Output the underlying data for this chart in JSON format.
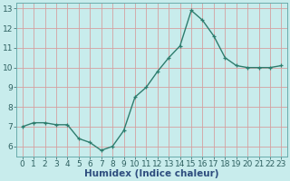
{
  "x": [
    0,
    1,
    2,
    3,
    4,
    5,
    6,
    7,
    8,
    9,
    10,
    11,
    12,
    13,
    14,
    15,
    16,
    17,
    18,
    19,
    20,
    21,
    22,
    23
  ],
  "y": [
    7.0,
    7.2,
    7.2,
    7.1,
    7.1,
    6.4,
    6.2,
    5.8,
    6.0,
    6.8,
    8.5,
    9.0,
    9.8,
    10.5,
    11.1,
    12.9,
    12.4,
    11.6,
    10.5,
    10.1,
    10.0,
    10.0,
    10.0,
    10.1
  ],
  "line_color": "#2e7d6e",
  "marker": "+",
  "marker_size": 3,
  "linewidth": 1.0,
  "xlabel": "Humidex (Indice chaleur)",
  "ylim": [
    5.5,
    13.3
  ],
  "xlim": [
    -0.5,
    23.5
  ],
  "yticks": [
    6,
    7,
    8,
    9,
    10,
    11,
    12,
    13
  ],
  "xticks": [
    0,
    1,
    2,
    3,
    4,
    5,
    6,
    7,
    8,
    9,
    10,
    11,
    12,
    13,
    14,
    15,
    16,
    17,
    18,
    19,
    20,
    21,
    22,
    23
  ],
  "xtick_labels": [
    "0",
    "1",
    "2",
    "3",
    "4",
    "5",
    "6",
    "7",
    "8",
    "9",
    "10",
    "11",
    "12",
    "13",
    "14",
    "15",
    "16",
    "17",
    "18",
    "19",
    "20",
    "21",
    "22",
    "23"
  ],
  "bg_color": "#c8ecec",
  "grid_color_v": "#d4a0a0",
  "grid_color_h": "#d4a0a0",
  "grid_linewidth": 0.6,
  "xlabel_fontsize": 7.5,
  "tick_fontsize": 6.5,
  "xlabel_color": "#2e4d7e",
  "tick_color": "#2e6060"
}
